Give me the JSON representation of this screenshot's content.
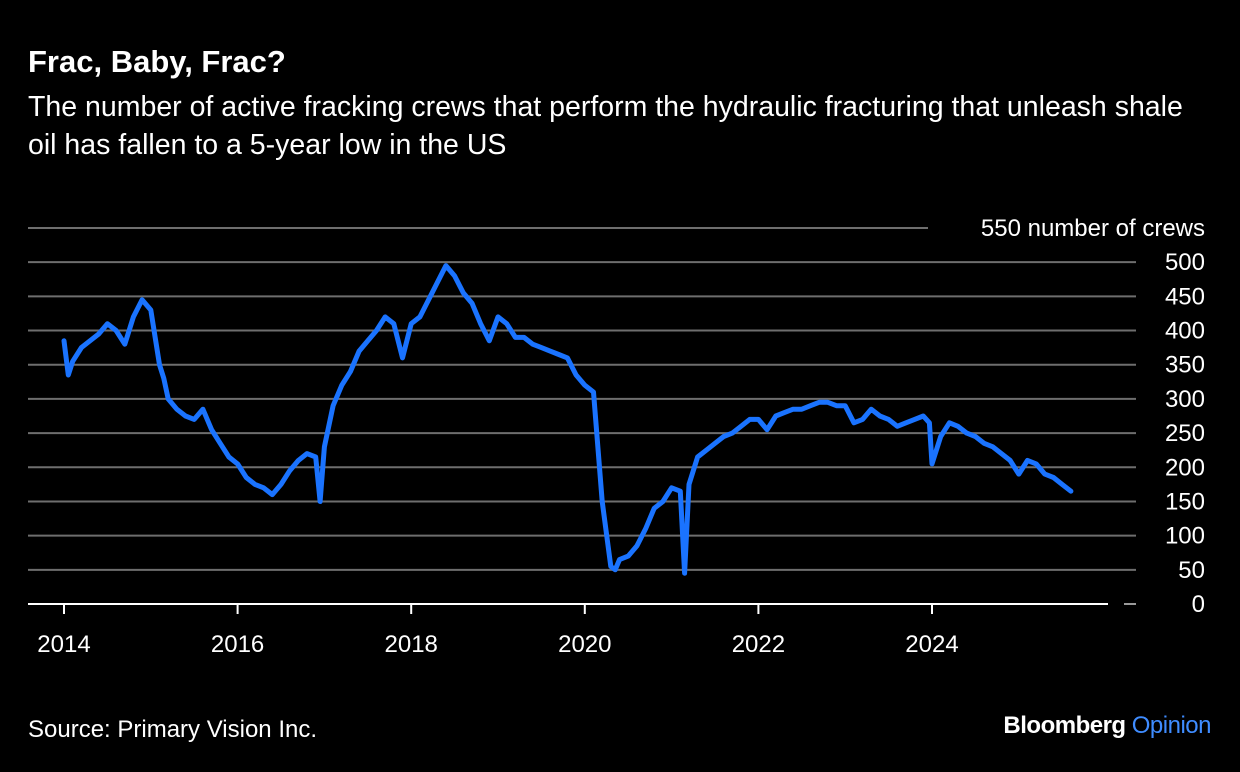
{
  "header": {
    "title": "Frac, Baby, Frac?",
    "subtitle": "The number of active fracking crews that perform the hydraulic fracturing that unleash shale oil has fallen to a 5-year low in the US"
  },
  "footer": {
    "source": "Source: Primary Vision Inc.",
    "brand": "Bloomberg",
    "brand_suffix": "Opinion"
  },
  "colors": {
    "line": "#1a73ff",
    "grid": "#6e6e6e",
    "text": "#ffffff",
    "background": "#000000",
    "brand_accent": "#3f8cff"
  },
  "chart_data": {
    "type": "line",
    "title": "Frac, Baby, Frac?",
    "ylabel": "number of crews",
    "ylim": [
      0,
      550
    ],
    "yticks": [
      0,
      50,
      100,
      150,
      200,
      250,
      300,
      350,
      400,
      450,
      500,
      550
    ],
    "ytick_labels": [
      "0",
      "50",
      "100",
      "150",
      "200",
      "250",
      "300",
      "350",
      "400",
      "450",
      "500",
      "550 number of crews"
    ],
    "xlim": [
      2014,
      2026.0
    ],
    "xticks": [
      2014,
      2016,
      2018,
      2020,
      2022,
      2024
    ],
    "xtick_labels": [
      "2014",
      "2016",
      "2018",
      "2020",
      "2022",
      "2024"
    ],
    "grid": true,
    "legend": "none",
    "series": [
      {
        "x": [
          2014.0,
          2014.05,
          2014.1,
          2014.2,
          2014.3,
          2014.4,
          2014.5,
          2014.6,
          2014.7,
          2014.8,
          2014.9,
          2015.0,
          2015.1,
          2015.15,
          2015.2,
          2015.3,
          2015.4,
          2015.5,
          2015.6,
          2015.7,
          2015.8,
          2015.9,
          2016.0,
          2016.1,
          2016.2,
          2016.3,
          2016.4,
          2016.5,
          2016.6,
          2016.7,
          2016.8,
          2016.9,
          2016.95,
          2017.0,
          2017.1,
          2017.2,
          2017.3,
          2017.4,
          2017.5,
          2017.6,
          2017.7,
          2017.8,
          2017.9,
          2018.0,
          2018.1,
          2018.2,
          2018.3,
          2018.4,
          2018.5,
          2018.6,
          2018.7,
          2018.8,
          2018.9,
          2019.0,
          2019.1,
          2019.2,
          2019.3,
          2019.4,
          2019.5,
          2019.6,
          2019.7,
          2019.8,
          2019.9,
          2020.0,
          2020.1,
          2020.2,
          2020.3,
          2020.35,
          2020.4,
          2020.5,
          2020.6,
          2020.7,
          2020.8,
          2020.9,
          2021.0,
          2021.1,
          2021.15,
          2021.2,
          2021.3,
          2021.4,
          2021.5,
          2021.6,
          2021.7,
          2021.8,
          2021.9,
          2022.0,
          2022.1,
          2022.2,
          2022.3,
          2022.4,
          2022.5,
          2022.6,
          2022.7,
          2022.8,
          2022.9,
          2023.0,
          2023.1,
          2023.2,
          2023.3,
          2023.4,
          2023.5,
          2023.6,
          2023.7,
          2023.8,
          2023.9,
          2023.97,
          2024.0,
          2024.1,
          2024.2,
          2024.3,
          2024.4,
          2024.5,
          2024.6,
          2024.7,
          2024.8,
          2024.9,
          2025.0,
          2025.1,
          2025.2,
          2025.3,
          2025.4,
          2025.5,
          2025.6
        ],
        "y": [
          385,
          335,
          355,
          375,
          385,
          395,
          410,
          400,
          380,
          420,
          445,
          430,
          350,
          330,
          300,
          285,
          275,
          270,
          285,
          255,
          235,
          215,
          205,
          185,
          175,
          170,
          160,
          175,
          195,
          210,
          220,
          215,
          150,
          230,
          290,
          320,
          340,
          370,
          385,
          400,
          420,
          410,
          360,
          410,
          420,
          445,
          470,
          495,
          480,
          455,
          440,
          410,
          385,
          420,
          410,
          390,
          390,
          380,
          375,
          370,
          365,
          360,
          335,
          320,
          310,
          150,
          55,
          50,
          65,
          70,
          85,
          110,
          140,
          150,
          170,
          165,
          45,
          175,
          215,
          225,
          235,
          245,
          250,
          260,
          270,
          270,
          255,
          275,
          280,
          285,
          285,
          290,
          295,
          295,
          290,
          290,
          265,
          270,
          285,
          275,
          270,
          260,
          265,
          270,
          275,
          265,
          205,
          245,
          265,
          260,
          250,
          245,
          235,
          230,
          220,
          210,
          190,
          210,
          205,
          190,
          185,
          175,
          165
        ]
      }
    ]
  }
}
